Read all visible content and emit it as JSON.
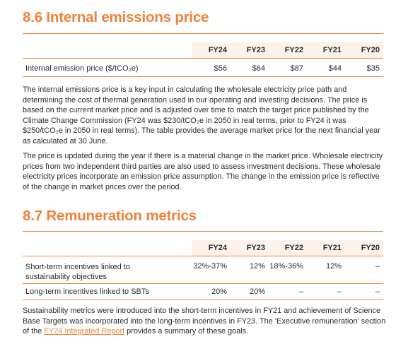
{
  "section1": {
    "title": "8.6 Internal emissions price",
    "columns": [
      "FY24",
      "FY23",
      "FY22",
      "FY21",
      "FY20"
    ],
    "row_label": "Internal emission price ($/tCO₂e)",
    "row_values": [
      "$56",
      "$64",
      "$87",
      "$44",
      "$35"
    ],
    "para1": "The internal emissions price is a key input in calculating the wholesale electricity price path and determining the cost of thermal generation used in our operating and investing decisions. The price is based on the current market price and is adjusted over time to match the target price published by the Climate Change Commission (FY24 was $230/tCO₂e in 2050 in real terms, prior to FY24 it was $250/tCO₂e in 2050 in real terms). The table provides the average market price for the next financial year as calculated at 30 June.",
    "para2": "The price is updated during the year if there is a material change in the market price. Wholesale electricity prices from two independent third parties are also used to assess investment decisions. These wholesale electricity prices incorporate an emission price assumption. The change in the emission price is reflective of the change in market prices over the period."
  },
  "section2": {
    "title": "8.7 Remuneration metrics",
    "columns": [
      "FY24",
      "FY23",
      "FY22",
      "FY21",
      "FY20"
    ],
    "rows": [
      {
        "label": "Short-term incentives linked to sustainability objectives",
        "values": [
          "32%-37%",
          "12%",
          "18%-36%",
          "12%",
          "–"
        ]
      },
      {
        "label": "Long-term incentives linked to SBTs",
        "values": [
          "20%",
          "20%",
          "–",
          "–",
          "–"
        ]
      }
    ],
    "para_before_link": "Sustainability metrics were introduced into the short-term incentives in FY21 and achievement of Science Base Targets was incorporated into the long-term incentives in FY23. The ‘Executive remuneration’ section of the ",
    "link_text": "FY24 Integrated Report",
    "para_after_link": " provides a summary of these goals."
  }
}
